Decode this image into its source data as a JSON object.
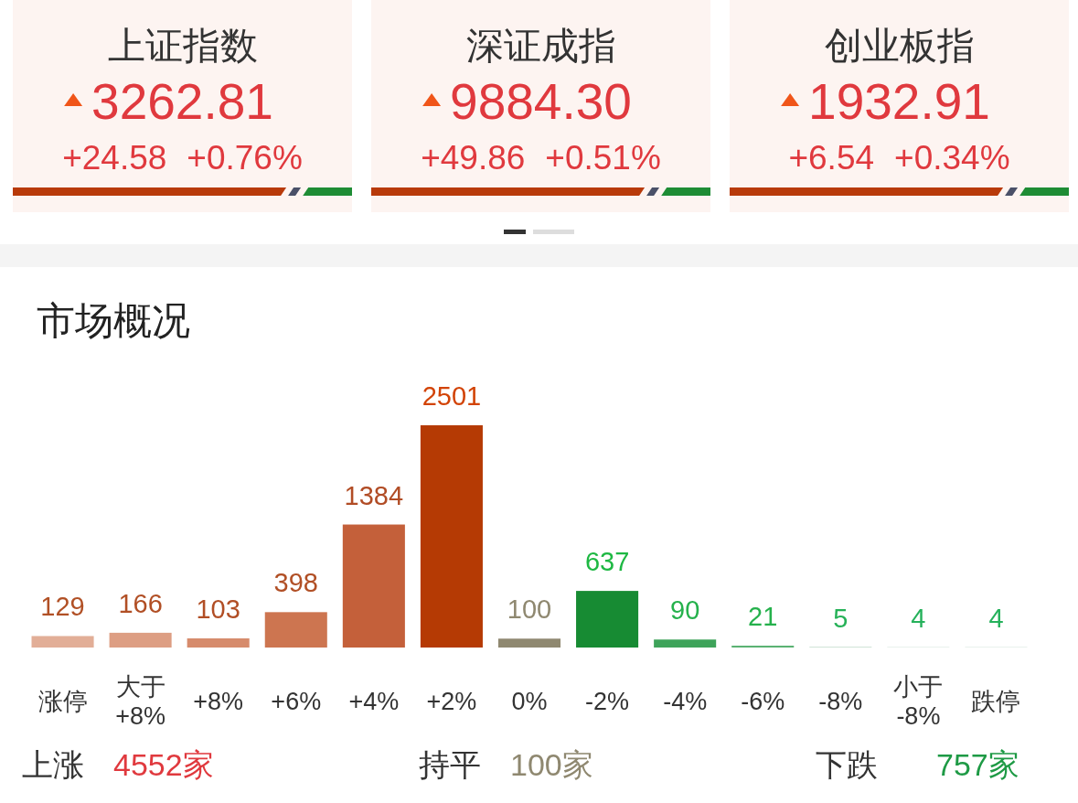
{
  "chart_data": [
    {
      "type": "other",
      "categories": [
        "上证指数",
        "深证成指",
        "创业板指"
      ],
      "annotations": [
        "3262.81",
        "+24.58",
        "+0.76%",
        "9884.30",
        "+49.86",
        "+0.51%",
        "1932.91",
        "+6.54",
        "+0.34%"
      ]
    },
    {
      "type": "bar",
      "title": "市场概况",
      "categories": [
        "涨停",
        "大于 +8%",
        "+8%",
        "+6%",
        "+4%",
        "+2%",
        "0%",
        "-2%",
        "-4%",
        "-6%",
        "-8%",
        "小于 -8%",
        "跌停"
      ],
      "values": [
        129,
        166,
        103,
        398,
        1384,
        2501,
        100,
        637,
        90,
        21,
        5,
        4,
        4
      ],
      "colors": [
        "#e2ae97",
        "#dd9e83",
        "#d68b6c",
        "#cd7550",
        "#c4603a",
        "#b53a04",
        "#8f8870",
        "#178b33",
        "#3ea35a",
        "#5bb273",
        "#9ec8ad",
        "#c7dccf",
        "#c7dccf"
      ],
      "data_labels": true,
      "annotations": [
        "上涨 4552家",
        "持平 100家",
        "下跌 757家"
      ]
    }
  ]
}
